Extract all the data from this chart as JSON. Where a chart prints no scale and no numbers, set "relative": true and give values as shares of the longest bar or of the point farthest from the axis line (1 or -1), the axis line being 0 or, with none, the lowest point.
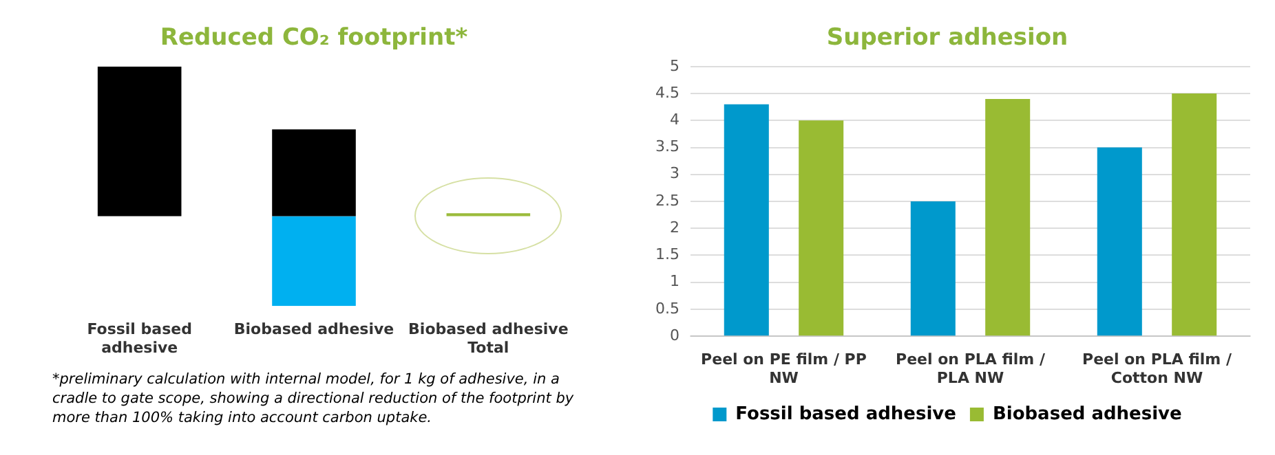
{
  "chart_data": [
    {
      "type": "bar",
      "title": "Reduced CO₂ footprint*",
      "relative": true,
      "stacked": true,
      "legend": false,
      "grid": false,
      "categories": [
        "Fossil based adhesive",
        "Biobased adhesive",
        "Biobased adhesive Total"
      ],
      "series": [
        {
          "color": "#000000",
          "values": [
            1,
            0.58,
            null
          ]
        },
        {
          "color": "#00b0f0",
          "values": [
            null,
            -0.6,
            null
          ]
        },
        {
          "color": "#9bbb3b",
          "values": [
            null,
            null,
            0.02
          ]
        }
      ],
      "annotations": [
        "*preliminary calculation with internal model, for 1 kg of adhesive, in a cradle to gate scope, showing a directional reduction of the footprint by more than 100% taking into account carbon uptake."
      ]
    },
    {
      "type": "bar",
      "title": "Superior adhesion",
      "legend": "bottom",
      "grid": "y",
      "categories": [
        "Peel on PE film / PP NW",
        "Peel on PLA film / PLA NW",
        "Peel on PLA film / Cotton NW"
      ],
      "ylim": [
        0,
        5
      ],
      "yticks": [
        0,
        0.5,
        1,
        1.5,
        2,
        2.5,
        3,
        3.5,
        4,
        4.5,
        5
      ],
      "series": [
        {
          "name": "Fossil based adhesive",
          "color": "#0099cc",
          "values": [
            4.3,
            2.5,
            3.5
          ]
        },
        {
          "name": "Biobased adhesive",
          "color": "#99bb33",
          "values": [
            4.0,
            4.4,
            4.5
          ]
        }
      ]
    }
  ]
}
